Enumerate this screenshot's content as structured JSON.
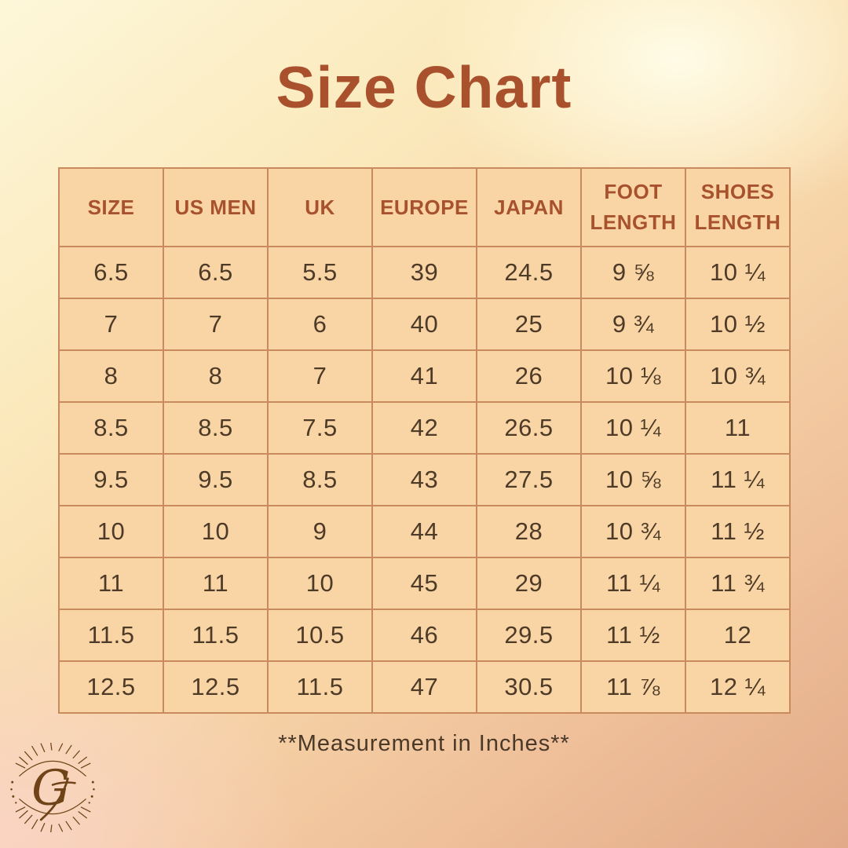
{
  "title": "Size Chart",
  "footnote": "**Measurement in Inches**",
  "logo": {
    "monogram": "G"
  },
  "colors": {
    "title_text": "#A9512C",
    "header_text": "#A8522D",
    "body_text": "#4E3B27",
    "cell_background": "#F9D5A6",
    "table_border": "#C98A5E",
    "logo_brown": "#6E4418",
    "background_top": "#FDF7D9",
    "background_bottom": "#E2AA88"
  },
  "chart_data": {
    "type": "table",
    "title": "Size Chart",
    "columns": [
      "SIZE",
      "US MEN",
      "UK",
      "EUROPE",
      "JAPAN",
      "FOOT LENGTH",
      "SHOES LENGTH"
    ],
    "rows": [
      [
        "6.5",
        "6.5",
        "5.5",
        "39",
        "24.5",
        "9 ⅝",
        "10 ¼"
      ],
      [
        "7",
        "7",
        "6",
        "40",
        "25",
        "9 ¾",
        "10 ½"
      ],
      [
        "8",
        "8",
        "7",
        "41",
        "26",
        "10 ⅛",
        "10 ¾"
      ],
      [
        "8.5",
        "8.5",
        "7.5",
        "42",
        "26.5",
        "10 ¼",
        "11"
      ],
      [
        "9.5",
        "9.5",
        "8.5",
        "43",
        "27.5",
        "10 ⅝",
        "11 ¼"
      ],
      [
        "10",
        "10",
        "9",
        "44",
        "28",
        "10 ¾",
        "11 ½"
      ],
      [
        "11",
        "11",
        "10",
        "45",
        "29",
        "11 ¼",
        "11 ¾"
      ],
      [
        "11.5",
        "11.5",
        "10.5",
        "46",
        "29.5",
        "11 ½",
        "12"
      ],
      [
        "12.5",
        "12.5",
        "11.5",
        "47",
        "30.5",
        "11 ⅞",
        "12 ¼"
      ]
    ],
    "note": "**Measurement in Inches**",
    "layout": {
      "grid": "bordered",
      "header_position": "top",
      "columns_equal_width": true
    }
  }
}
